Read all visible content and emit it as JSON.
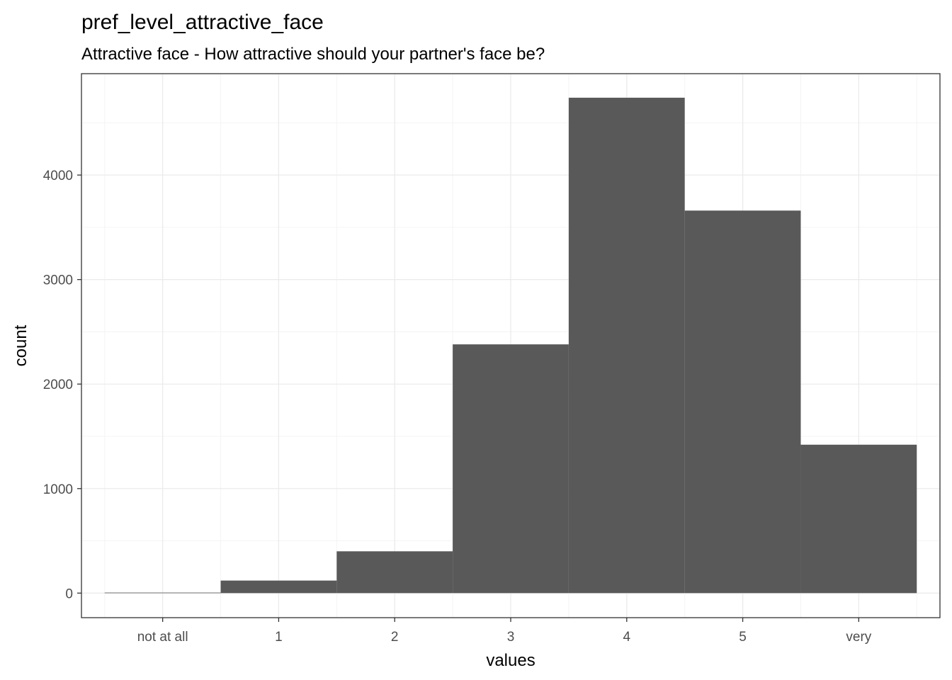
{
  "chart_data": {
    "type": "bar",
    "title": "pref_level_attractive_face",
    "subtitle": "Attractive face - How attractive should your partner's face be?",
    "xlabel": "values",
    "ylabel": "count",
    "categories": [
      "not at all",
      "1",
      "2",
      "3",
      "4",
      "5",
      "very"
    ],
    "values": [
      5,
      120,
      400,
      2380,
      4740,
      3660,
      1420
    ],
    "y_ticks": [
      0,
      1000,
      2000,
      3000,
      4000
    ],
    "ylim": [
      -235,
      4970
    ],
    "grid": true,
    "legend": "none",
    "colors": {
      "bar": "#595959",
      "grid_major": "#ebebeb",
      "grid_minor": "#f4f4f4",
      "panel_border": "#333333",
      "tick_text": "#4d4d4d"
    }
  }
}
